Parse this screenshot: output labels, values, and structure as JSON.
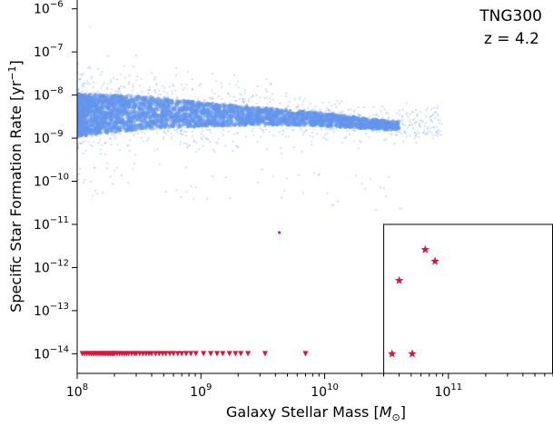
{
  "chart_data": {
    "type": "scatter",
    "xscale": "log",
    "yscale": "log",
    "xlim": [
      100000000.0,
      700000000000.0
    ],
    "ylim": [
      3.5e-15,
      1.6e-06
    ],
    "xlabel_text": "Galaxy Stellar Mass [",
    "xlabel_unit": "M",
    "xlabel_sub": "⊙",
    "xlabel_close": "]",
    "ylabel_text": "Specific Star Formation Rate [yr",
    "ylabel_sup": "−1",
    "ylabel_close": "]",
    "annotations": [
      "TNG300",
      "z = 4.2"
    ],
    "x_ticks": [
      {
        "value": 100000000.0,
        "base": "10",
        "exp": "8"
      },
      {
        "value": 1000000000.0,
        "base": "10",
        "exp": "9"
      },
      {
        "value": 10000000000.0,
        "base": "10",
        "exp": "10"
      },
      {
        "value": 100000000000.0,
        "base": "10",
        "exp": "11"
      }
    ],
    "y_ticks": [
      {
        "value": 1e-06,
        "base": "10",
        "exp": "−6"
      },
      {
        "value": 1e-07,
        "base": "10",
        "exp": "−7"
      },
      {
        "value": 1e-08,
        "base": "10",
        "exp": "−8"
      },
      {
        "value": 1e-09,
        "base": "10",
        "exp": "−9"
      },
      {
        "value": 1e-10,
        "base": "10",
        "exp": "−10"
      },
      {
        "value": 1e-11,
        "base": "10",
        "exp": "−11"
      },
      {
        "value": 1e-12,
        "base": "10",
        "exp": "−12"
      },
      {
        "value": 1e-13,
        "base": "10",
        "exp": "−13"
      },
      {
        "value": 1e-14,
        "base": "10",
        "exp": "−14"
      }
    ],
    "colors": {
      "star_forming": "#6495ed",
      "quenched": "#dc143c"
    },
    "star_forming_band": {
      "logx": [
        8.0,
        8.5,
        9.0,
        9.5,
        10.0,
        10.5
      ],
      "log_median": [
        -8.4,
        -8.37,
        -8.45,
        -8.5,
        -8.58,
        -8.7
      ],
      "log_lower": [
        -8.95,
        -8.8,
        -8.72,
        -8.68,
        -8.72,
        -8.8
      ],
      "log_upper": [
        -7.98,
        -8.02,
        -8.18,
        -8.3,
        -8.42,
        -8.6
      ],
      "log_scatter_lower": [
        -9.75,
        -9.4,
        -9.2,
        -9.1,
        -9.05,
        -9.0
      ],
      "log_scatter_upper": [
        -7.8,
        -7.9,
        -8.0,
        -8.1,
        -8.2,
        -8.35
      ],
      "xmax_log": 10.95
    },
    "quenched_limits": {
      "y": 1e-14,
      "x": [
        110000000.0,
        115000000.0,
        120000000.0,
        125000000.0,
        130000000.0,
        135000000.0,
        140000000.0,
        145000000.0,
        150000000.0,
        155000000.0,
        160000000.0,
        165000000.0,
        170000000.0,
        175000000.0,
        180000000.0,
        185000000.0,
        190000000.0,
        195000000.0,
        200000000.0,
        210000000.0,
        220000000.0,
        230000000.0,
        240000000.0,
        250000000.0,
        260000000.0,
        275000000.0,
        290000000.0,
        300000000.0,
        320000000.0,
        340000000.0,
        360000000.0,
        380000000.0,
        400000000.0,
        430000000.0,
        460000000.0,
        490000000.0,
        520000000.0,
        560000000.0,
        600000000.0,
        650000000.0,
        700000000.0,
        760000000.0,
        830000000.0,
        910000000.0,
        1050000000.0,
        1200000000.0,
        1350000000.0,
        1500000000.0,
        1700000000.0,
        1900000000.0,
        2100000000.0,
        2400000000.0,
        3300000000.0,
        7000000000.0
      ]
    },
    "outlier": {
      "x": 4300000000.0,
      "y": 6.5e-12
    },
    "inset_box": {
      "x0": 30000000000.0,
      "y0": 1e-11
    },
    "inset_stars": [
      {
        "x": 65000000000.0,
        "y": 2.6e-12
      },
      {
        "x": 78000000000.0,
        "y": 1.4e-12
      },
      {
        "x": 40000000000.0,
        "y": 5e-13
      },
      {
        "x": 35000000000.0,
        "y": 1e-14
      },
      {
        "x": 51000000000.0,
        "y": 1e-14
      }
    ]
  }
}
